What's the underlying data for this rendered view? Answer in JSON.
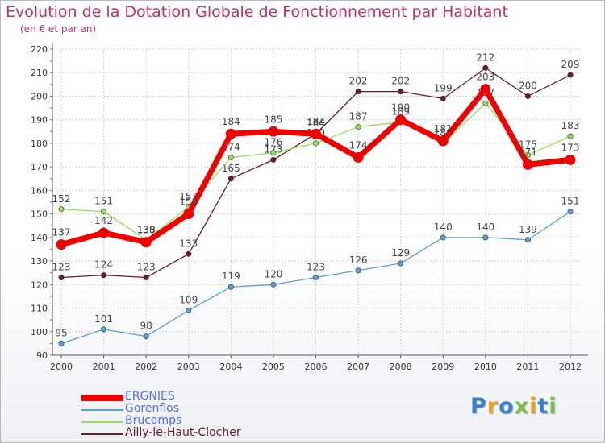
{
  "title": "Evolution de la Dotation Globale de Fonctionnement par Habitant",
  "subtitle": "(en € et par an)",
  "logo": {
    "letters": [
      "P",
      "r",
      "o",
      "x",
      "i",
      "t",
      "i"
    ],
    "colors": [
      "#3b7fd0",
      "#e8a21c",
      "#3b7fd0",
      "#7ac143",
      "#e8a21c",
      "#3b7fd0",
      "#7ac143"
    ]
  },
  "chart_data": {
    "type": "line",
    "title": "Evolution de la Dotation Globale de Fonctionnement par Habitant",
    "subtitle": "(en € et par an)",
    "xlabel": "",
    "ylabel": "",
    "x": [
      "2000",
      "2001",
      "2002",
      "2003",
      "2004",
      "2005",
      "2006",
      "2007",
      "2008",
      "2009",
      "2010",
      "2011",
      "2012"
    ],
    "ylim": [
      90,
      220
    ],
    "yticks": [
      90,
      100,
      110,
      120,
      130,
      140,
      150,
      160,
      170,
      180,
      190,
      200,
      210,
      220
    ],
    "grid": true,
    "legend_position": "bottom-left",
    "series": [
      {
        "name": "Ailly-le-Haut-Clocher",
        "color": "#6b1c24",
        "values": [
          123,
          124,
          123,
          133,
          165,
          173,
          184,
          202,
          202,
          199,
          212,
          200,
          209
        ]
      },
      {
        "name": "Gorenflos",
        "color": "#5d9fd3",
        "values": [
          95,
          101,
          98,
          109,
          119,
          120,
          123,
          126,
          129,
          140,
          140,
          139,
          151
        ]
      },
      {
        "name": "Brucamps",
        "color": "#92e05a",
        "values": [
          152,
          151,
          139,
          153,
          174,
          176,
          180,
          187,
          189,
          180,
          197,
          175,
          183
        ]
      },
      {
        "name": "ERGNIES",
        "color": "#ee0000",
        "values": [
          137,
          142,
          138,
          150,
          184,
          185,
          184,
          174,
          190,
          181,
          203,
          171,
          173
        ]
      }
    ],
    "legend_order": [
      "ERGNIES",
      "Gorenflos",
      "Brucamps",
      "Ailly-le-Haut-Clocher"
    ]
  }
}
